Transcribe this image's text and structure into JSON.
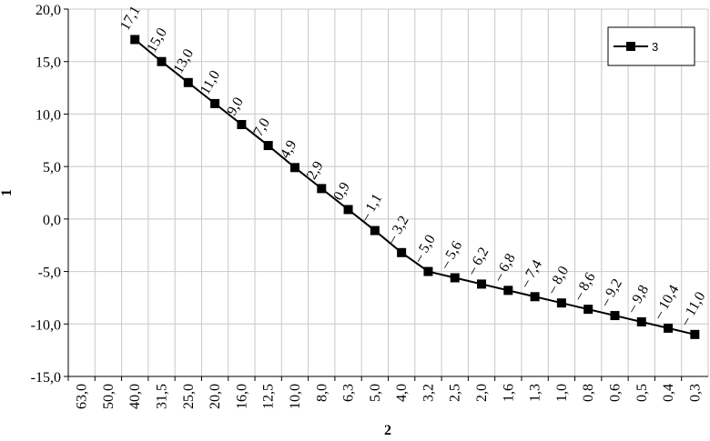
{
  "chart_data": {
    "type": "line",
    "y_label": "1",
    "x_label": "2",
    "categories": [
      "63,0",
      "50,0",
      "40,0",
      "31,5",
      "25,0",
      "20,0",
      "16,0",
      "12,5",
      "10,0",
      "8,0",
      "6,3",
      "5,0",
      "4,0",
      "3,2",
      "2,5",
      "2,0",
      "1,6",
      "1,3",
      "1,0",
      "0,8",
      "0,6",
      "0,5",
      "0,4",
      "0,3"
    ],
    "series": [
      {
        "name": "3",
        "color": "#000000",
        "marker": "square",
        "values": [
          null,
          null,
          17.1,
          15.0,
          13.0,
          11.0,
          9.0,
          7.0,
          4.9,
          2.9,
          0.9,
          -1.1,
          -3.2,
          -5.0,
          -5.6,
          -6.2,
          -6.8,
          -7.4,
          -8.0,
          -8.6,
          -9.2,
          -9.8,
          -10.4,
          -11.0
        ],
        "value_labels": [
          null,
          null,
          "17,1",
          "15,0",
          "13,0",
          "11,0",
          "9,0",
          "7,0",
          "4,9",
          "2,9",
          "0,9",
          "– 1,1",
          "– 3,2",
          "– 5,0",
          "– 5,6",
          "– 6,2",
          "– 6,8",
          "– 7,4",
          "– 8,0",
          "– 8,6",
          "– 9,2",
          "– 9,8",
          "– 10,4",
          "– 11,0"
        ]
      }
    ],
    "ylim": [
      -15,
      20
    ],
    "yticks": [
      {
        "value": 20,
        "label": "20,0"
      },
      {
        "value": 15,
        "label": "15,0"
      },
      {
        "value": 10,
        "label": "10,0"
      },
      {
        "value": 5,
        "label": "5,0"
      },
      {
        "value": 0,
        "label": "0,0"
      },
      {
        "value": -5,
        "label": "-5,0"
      },
      {
        "value": -10,
        "label": "-10,0"
      },
      {
        "value": -15,
        "label": "-15,0"
      }
    ],
    "grid": true,
    "legend": "upper right"
  }
}
